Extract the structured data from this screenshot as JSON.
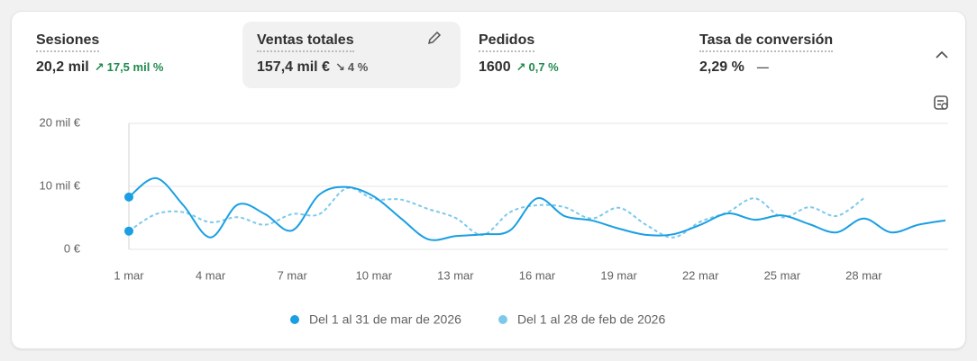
{
  "metrics": [
    {
      "label": "Sesiones",
      "value": "20,2 mil",
      "change": "17,5 mil %",
      "trend": "up"
    },
    {
      "label": "Ventas totales",
      "value": "157,4 mil €",
      "change": "4 %",
      "trend": "down"
    },
    {
      "label": "Pedidos",
      "value": "1600",
      "change": "0,7 %",
      "trend": "up"
    },
    {
      "label": "Tasa de conversión",
      "value": "2,29 %",
      "change": "—",
      "trend": "flat"
    }
  ],
  "chart_data": {
    "type": "line",
    "categories": [
      "1 mar",
      null,
      null,
      "4 mar",
      null,
      null,
      "7 mar",
      null,
      null,
      "10 mar",
      null,
      null,
      "13 mar",
      null,
      null,
      "16 mar",
      null,
      null,
      "19 mar",
      null,
      null,
      "22 mar",
      null,
      null,
      "25 mar",
      null,
      null,
      "28 mar",
      null,
      null,
      null
    ],
    "series": [
      {
        "name": "Del 1 al 31 de mar de 2026",
        "color": "#1a9fe3",
        "dashed": false,
        "values": [
          8300,
          11300,
          7000,
          1900,
          7100,
          5600,
          3000,
          8700,
          9900,
          8400,
          4900,
          1600,
          2100,
          2400,
          3000,
          8100,
          5300,
          4600,
          3300,
          2300,
          2400,
          3900,
          5700,
          4700,
          5400,
          4000,
          2700,
          4900,
          2700,
          3900,
          4600
        ]
      },
      {
        "name": "Del 1 al 28 de feb de 2026",
        "color": "#7cc9ec",
        "dashed": true,
        "values": [
          2900,
          5600,
          5900,
          4300,
          5100,
          3900,
          5600,
          5600,
          9700,
          8000,
          7900,
          6400,
          5000,
          2300,
          5900,
          7000,
          6700,
          4900,
          6600,
          3900,
          1900,
          4400,
          5900,
          8100,
          5100,
          6700,
          5300,
          8100,
          null,
          null,
          null
        ]
      }
    ],
    "ylim": [
      0,
      20000
    ],
    "yticks": [
      {
        "value": 0,
        "label": "0 €"
      },
      {
        "value": 10000,
        "label": "10 mil €"
      },
      {
        "value": 20000,
        "label": "20 mil €"
      }
    ],
    "grid": true,
    "legend": "bottom"
  }
}
